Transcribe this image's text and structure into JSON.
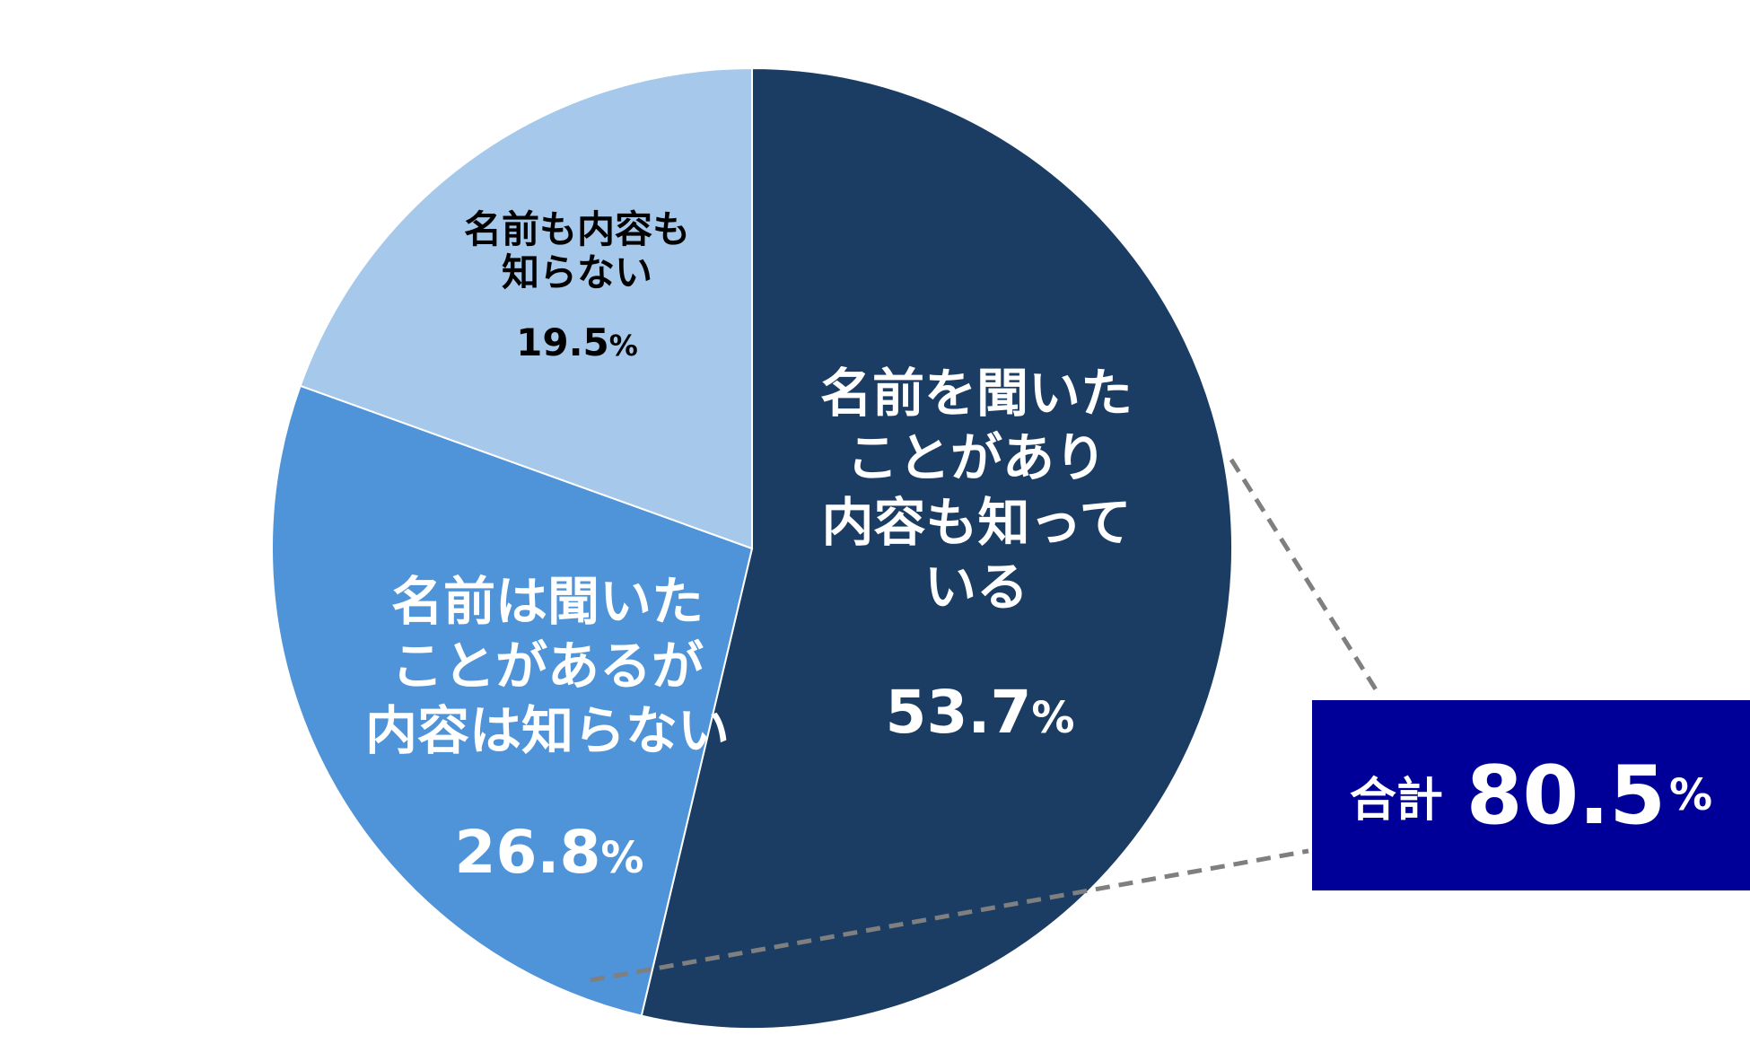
{
  "chart_data": {
    "type": "pie",
    "start_angle_deg": 0,
    "direction": "clockwise",
    "slices": [
      {
        "id": "know",
        "label_lines": [
          "名前を聞いた",
          "ことがあり",
          "内容も知って",
          "いる"
        ],
        "value": 53.7,
        "value_text": "53.7",
        "unit": "%",
        "color": "#1b3d64",
        "text_color": "#ffffff"
      },
      {
        "id": "heard",
        "label_lines": [
          "名前は聞いた",
          "ことがあるが",
          "内容は知らない"
        ],
        "value": 26.8,
        "value_text": "26.8",
        "unit": "%",
        "color": "#4f94d8",
        "text_color": "#ffffff"
      },
      {
        "id": "unknown",
        "label_lines": [
          "名前も内容も",
          "知らない"
        ],
        "value": 19.5,
        "value_text": "19.5",
        "unit": "%",
        "color": "#a5c8eb",
        "text_color": "#000000"
      }
    ],
    "total": {
      "label": "合計",
      "value": 80.5,
      "value_text": "80.5",
      "unit": "%"
    }
  }
}
